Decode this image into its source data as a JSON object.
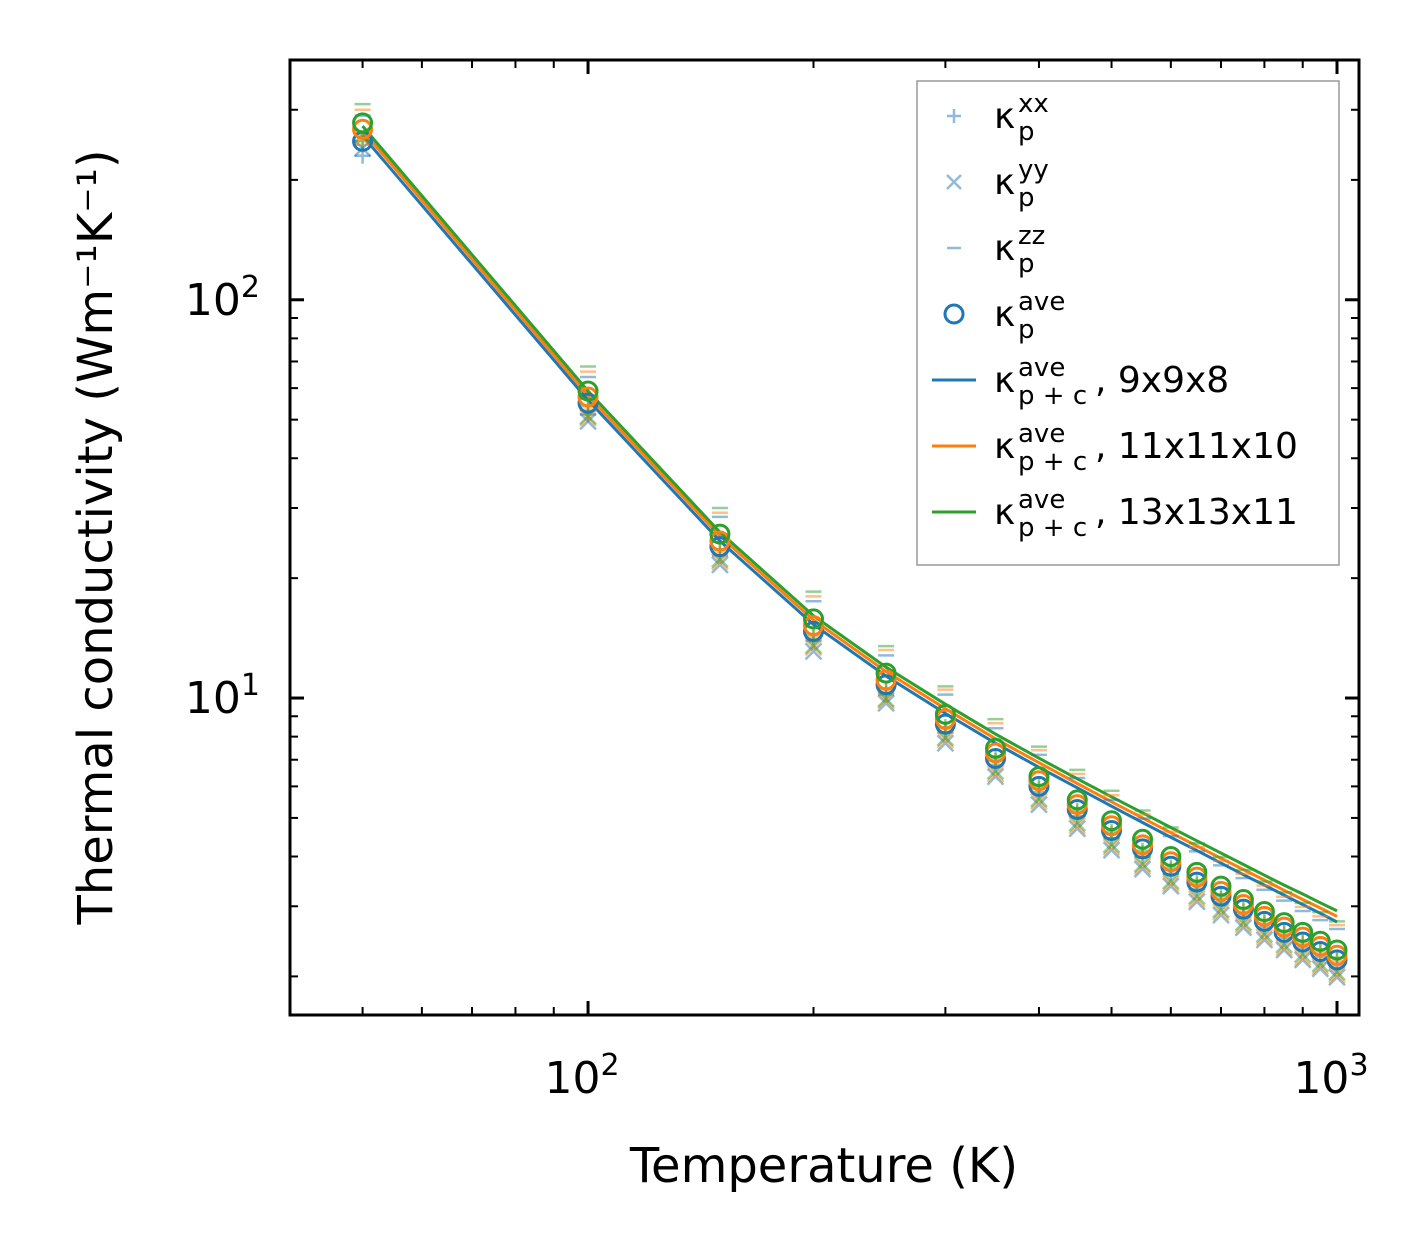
{
  "chart_data": {
    "type": "line",
    "title": "",
    "xlabel": "Temperature (K)",
    "ylabel": "Thermal conductivity (Wm⁻¹K⁻¹)",
    "xscale": "log",
    "yscale": "log",
    "xlim": [
      40,
      1070
    ],
    "ylim": [
      1.6,
      400
    ],
    "xticks": [
      {
        "value": 100,
        "base": "10",
        "exp": "2"
      },
      {
        "value": 1000,
        "base": "10",
        "exp": "3"
      }
    ],
    "yticks": [
      {
        "value": 10,
        "base": "10",
        "exp": "1"
      },
      {
        "value": 100,
        "base": "10",
        "exp": "2"
      }
    ],
    "x": [
      50,
      100,
      150,
      200,
      250,
      300,
      350,
      400,
      450,
      500,
      550,
      600,
      650,
      700,
      750,
      800,
      850,
      900,
      950,
      1000
    ],
    "colors": {
      "blue": "#1f77b4",
      "orange": "#ff7f0e",
      "green": "#2ca02c"
    },
    "marker_series": [
      {
        "name": "xx",
        "marker": "plus",
        "alpha": 0.5,
        "legend": {
          "base": "κ",
          "sub": "p",
          "sup": "xx",
          "suffix": ""
        },
        "variants": [
          {
            "color": "#1f77b4",
            "values": [
              230,
              51.5,
              22.8,
              13.9,
              10.2,
              8.2,
              6.8,
              5.8,
              5.05,
              4.45,
              4.0,
              3.62,
              3.32,
              3.07,
              2.85,
              2.66,
              2.5,
              2.36,
              2.24,
              2.13
            ]
          },
          {
            "color": "#ff7f0e",
            "values": [
              245,
              53.0,
              23.3,
              14.2,
              10.4,
              8.35,
              6.95,
              5.9,
              5.15,
              4.55,
              4.08,
              3.7,
              3.39,
              3.13,
              2.91,
              2.72,
              2.56,
              2.42,
              2.3,
              2.19
            ]
          },
          {
            "color": "#2ca02c",
            "values": [
              250,
              54.0,
              23.6,
              14.4,
              10.55,
              8.45,
              7.05,
              6.0,
              5.22,
              4.62,
              4.14,
              3.75,
              3.44,
              3.18,
              2.96,
              2.77,
              2.6,
              2.46,
              2.34,
              2.23
            ]
          }
        ]
      },
      {
        "name": "yy",
        "marker": "x",
        "alpha": 0.5,
        "legend": {
          "base": "κ",
          "sub": "p",
          "sup": "yy",
          "suffix": ""
        },
        "variants": [
          {
            "color": "#1f77b4",
            "values": [
              240,
              49.5,
              21.6,
              13.1,
              9.7,
              7.7,
              6.35,
              5.4,
              4.7,
              4.15,
              3.72,
              3.37,
              3.08,
              2.85,
              2.65,
              2.47,
              2.33,
              2.2,
              2.09,
              1.99
            ]
          },
          {
            "color": "#ff7f0e",
            "values": [
              255,
              50.5,
              22.0,
              13.4,
              9.85,
              7.85,
              6.45,
              5.5,
              4.78,
              4.22,
              3.78,
              3.42,
              3.13,
              2.9,
              2.69,
              2.51,
              2.36,
              2.23,
              2.12,
              2.02
            ]
          },
          {
            "color": "#2ca02c",
            "values": [
              260,
              51.0,
              22.3,
              13.55,
              9.95,
              7.95,
              6.55,
              5.58,
              4.85,
              4.28,
              3.83,
              3.47,
              3.18,
              2.94,
              2.73,
              2.55,
              2.4,
              2.27,
              2.15,
              2.05
            ]
          }
        ]
      },
      {
        "name": "zz",
        "marker": "hline",
        "alpha": 0.5,
        "legend": {
          "base": "κ",
          "sub": "p",
          "sup": "zz",
          "suffix": ""
        },
        "variants": [
          {
            "color": "#1f77b4",
            "values": [
              290,
              64.0,
              28.5,
              17.5,
              12.8,
              10.2,
              8.4,
              7.2,
              6.3,
              5.55,
              4.98,
              4.5,
              4.12,
              3.8,
              3.53,
              3.3,
              3.1,
              2.92,
              2.77,
              2.63
            ]
          },
          {
            "color": "#ff7f0e",
            "values": [
              300,
              66.0,
              29.2,
              18.0,
              13.2,
              10.5,
              8.65,
              7.4,
              6.45,
              5.7,
              5.1,
              4.62,
              4.22,
              3.9,
              3.62,
              3.38,
              3.17,
              2.99,
              2.83,
              2.69
            ]
          },
          {
            "color": "#2ca02c",
            "values": [
              310,
              68.0,
              30.0,
              18.5,
              13.5,
              10.7,
              8.85,
              7.55,
              6.6,
              5.85,
              5.22,
              4.73,
              4.32,
              3.99,
              3.7,
              3.46,
              3.25,
              3.06,
              2.9,
              2.75
            ]
          }
        ]
      },
      {
        "name": "ave",
        "marker": "circle",
        "alpha": 1.0,
        "legend": {
          "base": "κ",
          "sub": "p",
          "sup": "ave",
          "suffix": ""
        },
        "variants": [
          {
            "color": "#1f77b4",
            "values": [
              250,
              55.0,
              24.0,
              14.7,
              10.8,
              8.6,
              7.05,
              6.0,
              5.25,
              4.65,
              4.18,
              3.78,
              3.45,
              3.18,
              2.95,
              2.75,
              2.58,
              2.44,
              2.31,
              2.2
            ]
          },
          {
            "color": "#ff7f0e",
            "values": [
              268,
              57.0,
              24.8,
              15.2,
              11.1,
              8.85,
              7.28,
              6.2,
              5.4,
              4.78,
              4.28,
              3.88,
              3.55,
              3.27,
              3.03,
              2.83,
              2.66,
              2.51,
              2.38,
              2.26
            ]
          },
          {
            "color": "#2ca02c",
            "values": [
              278,
              59.0,
              25.8,
              15.8,
              11.55,
              9.1,
              7.48,
              6.35,
              5.55,
              4.92,
              4.42,
              4.0,
              3.65,
              3.37,
              3.12,
              2.91,
              2.73,
              2.58,
              2.45,
              2.33
            ]
          }
        ]
      }
    ],
    "line_series": [
      {
        "name": "κ_p+c ave, 9x9x8",
        "color": "#1f77b4",
        "legend": {
          "base": "κ",
          "sub": "p + c",
          "sup": "ave",
          "suffix": ", 9x9x8"
        },
        "values": [
          258,
          56.0,
          24.8,
          15.3,
          11.35,
          9.15,
          7.7,
          6.7,
          5.95,
          5.35,
          4.87,
          4.47,
          4.14,
          3.85,
          3.6,
          3.39,
          3.2,
          3.03,
          2.88,
          2.74
        ]
      },
      {
        "name": "κ_p+c ave, 11x11x10",
        "color": "#ff7f0e",
        "legend": {
          "base": "κ",
          "sub": "p + c",
          "sup": "ave",
          "suffix": ", 11x11x10"
        },
        "values": [
          266,
          57.5,
          25.5,
          15.7,
          11.65,
          9.4,
          7.9,
          6.88,
          6.1,
          5.49,
          5.0,
          4.59,
          4.25,
          3.96,
          3.71,
          3.49,
          3.29,
          3.12,
          2.97,
          2.83
        ]
      },
      {
        "name": "κ_p+c ave, 13x13x11",
        "color": "#2ca02c",
        "legend": {
          "base": "κ",
          "sub": "p + c",
          "sup": "ave",
          "suffix": ", 13x13x11"
        },
        "values": [
          273,
          59.0,
          26.1,
          16.1,
          11.95,
          9.65,
          8.12,
          7.06,
          6.27,
          5.65,
          5.15,
          4.73,
          4.38,
          4.08,
          3.82,
          3.59,
          3.39,
          3.22,
          3.06,
          2.92
        ]
      }
    ],
    "legend_location": "top-right"
  }
}
